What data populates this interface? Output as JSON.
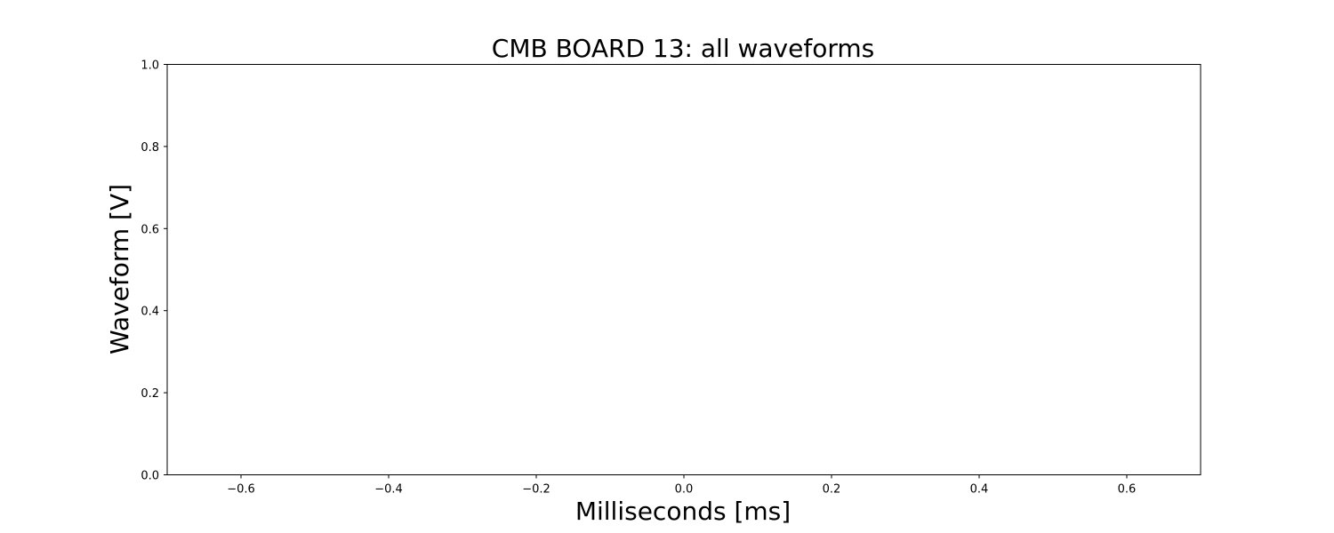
{
  "chart_data": {
    "type": "line",
    "title": "CMB BOARD 13: all waveforms",
    "xlabel": "Milliseconds [ms]",
    "ylabel": "Waveform [V]",
    "xlim": [
      -0.7,
      0.7
    ],
    "ylim": [
      0.0,
      1.0
    ],
    "x_ticks": [
      -0.6,
      -0.4,
      -0.2,
      0.0,
      0.2,
      0.4,
      0.6
    ],
    "x_tick_labels": [
      "−0.6",
      "−0.4",
      "−0.2",
      "0.0",
      "0.2",
      "0.4",
      "0.6"
    ],
    "y_ticks": [
      0.0,
      0.2,
      0.4,
      0.6,
      0.8,
      1.0
    ],
    "y_tick_labels": [
      "0.0",
      "0.2",
      "0.4",
      "0.6",
      "0.8",
      "1.0"
    ],
    "grid": false,
    "series": []
  }
}
